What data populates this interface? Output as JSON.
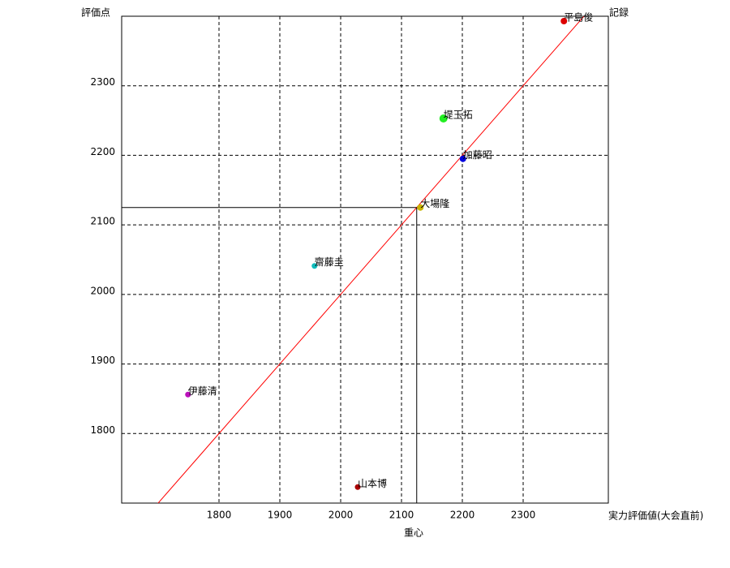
{
  "chart_data": {
    "type": "scatter",
    "x_label": "実力評価値(大会直前)",
    "y_label": "評価点",
    "corner_label": "記録",
    "xlim": [
      1640,
      2440
    ],
    "ylim": [
      1700,
      2400
    ],
    "xticks": [
      1800,
      1900,
      2000,
      2100,
      2200,
      2300
    ],
    "yticks": [
      1800,
      1900,
      2000,
      2100,
      2200,
      2300
    ],
    "grid": true,
    "reference_line": {
      "slope": 1,
      "intercept": 0,
      "color": "#ff0000"
    },
    "centroid": {
      "label": "重心",
      "x": 2125,
      "y": 2125,
      "color": "#000000"
    },
    "series": [
      {
        "name": "平島俊",
        "color": "#dd0000",
        "marker_size": 4,
        "x": [
          2367
        ],
        "values": [
          2393
        ]
      },
      {
        "name": "堤玉拓",
        "color": "#22ee22",
        "marker_size": 5,
        "x": [
          2169
        ],
        "values": [
          2253
        ]
      },
      {
        "name": "加藤昭",
        "color": "#0000dd",
        "marker_size": 4,
        "x": [
          2201
        ],
        "values": [
          2195
        ]
      },
      {
        "name": "大場隆",
        "color": "#c8b400",
        "marker_size": 4,
        "x": [
          2131
        ],
        "values": [
          2125
        ]
      },
      {
        "name": "齋藤圭",
        "color": "#11bbbb",
        "marker_size": 3.5,
        "x": [
          1957
        ],
        "values": [
          2041
        ]
      },
      {
        "name": "伊藤清",
        "color": "#bb11bb",
        "marker_size": 3.5,
        "x": [
          1749
        ],
        "values": [
          1856
        ]
      },
      {
        "name": "山本博",
        "color": "#aa0000",
        "marker_size": 3.5,
        "x": [
          2028
        ],
        "values": [
          1723
        ]
      }
    ]
  }
}
